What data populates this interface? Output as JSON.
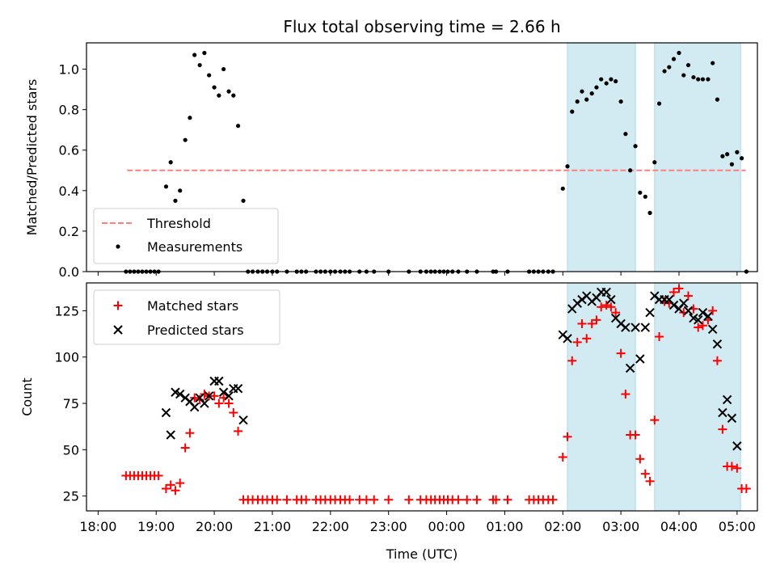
{
  "chart_data": [
    {
      "type": "scatter",
      "title": "Flux total observing time = 2.66 h",
      "xlabel": "",
      "ylabel": "Matched/Predicted stars",
      "ylim": [
        0,
        1.13
      ],
      "yticks": [
        0.0,
        0.2,
        0.4,
        0.6,
        0.8,
        1.0
      ],
      "ytick_labels": [
        "0.0",
        "0.2",
        "0.4",
        "0.6",
        "0.8",
        "1.0"
      ],
      "x_unit": "hours since 18:00 UTC",
      "xlim": [
        -0.2,
        11.35
      ],
      "highlight_spans": [
        [
          8.08,
          9.25
        ],
        [
          9.58,
          11.06
        ]
      ],
      "highlight_color": "#add8e6",
      "threshold": {
        "name": "Threshold",
        "value": 0.5,
        "x_range": [
          0.5,
          11.15
        ],
        "color": "#ff7f7f",
        "style": "dashed"
      },
      "series": [
        {
          "name": "Measurements",
          "marker": "dot",
          "color": "#000000",
          "x": [
            0.48,
            0.55,
            0.62,
            0.69,
            0.76,
            0.83,
            0.9,
            0.97,
            1.04,
            1.17,
            1.25,
            1.33,
            1.41,
            1.5,
            1.58,
            1.66,
            1.75,
            1.83,
            1.91,
            2.0,
            2.08,
            2.16,
            2.25,
            2.33,
            2.41,
            2.5,
            2.58,
            2.66,
            2.75,
            2.83,
            2.91,
            3.0,
            3.08,
            3.25,
            3.42,
            3.5,
            3.58,
            3.75,
            3.83,
            3.91,
            4.0,
            4.08,
            4.17,
            4.25,
            4.33,
            4.5,
            4.62,
            4.75,
            5.0,
            5.35,
            5.55,
            5.65,
            5.73,
            5.8,
            5.88,
            5.95,
            6.02,
            6.1,
            6.2,
            6.35,
            6.52,
            6.8,
            6.85,
            7.05,
            7.42,
            7.5,
            7.58,
            7.66,
            7.75,
            7.83,
            8.0,
            8.08,
            8.16,
            8.25,
            8.33,
            8.41,
            8.5,
            8.58,
            8.66,
            8.75,
            8.83,
            8.91,
            9.0,
            9.08,
            9.16,
            9.25,
            9.33,
            9.42,
            9.5,
            9.58,
            9.66,
            9.75,
            9.83,
            9.91,
            10.0,
            10.08,
            10.16,
            10.25,
            10.33,
            10.41,
            10.5,
            10.58,
            10.66,
            10.75,
            10.83,
            10.91,
            11.0,
            11.08,
            11.16
          ],
          "y": [
            0,
            0,
            0,
            0,
            0,
            0,
            0,
            0,
            0,
            0.42,
            0.54,
            0.35,
            0.4,
            0.65,
            0.76,
            1.07,
            1.02,
            1.08,
            0.97,
            0.91,
            0.87,
            1.0,
            0.89,
            0.87,
            0.72,
            0.35,
            0,
            0,
            0,
            0,
            0,
            0,
            0,
            0,
            0,
            0,
            0,
            0,
            0,
            0,
            0,
            0,
            0,
            0,
            0,
            0,
            0,
            0,
            0,
            0,
            0,
            0,
            0,
            0,
            0,
            0,
            0,
            0,
            0,
            0,
            0,
            0,
            0,
            0,
            0,
            0,
            0,
            0,
            0,
            0,
            0.41,
            0.52,
            0.79,
            0.84,
            0.89,
            0.85,
            0.88,
            0.91,
            0.95,
            0.93,
            0.95,
            0.94,
            0.84,
            0.68,
            0.5,
            0.62,
            0.39,
            0.37,
            0.29,
            0.54,
            0.83,
            0.99,
            1.01,
            1.05,
            1.08,
            0.97,
            1.02,
            0.96,
            0.95,
            0.95,
            0.95,
            1.03,
            0.85,
            0.57,
            0.58,
            0.53,
            0.59,
            0.56,
            0
          ]
        }
      ],
      "legend": {
        "position": "lower-left",
        "entries": [
          "Threshold",
          "Measurements"
        ]
      }
    },
    {
      "type": "scatter",
      "title": "",
      "xlabel": "Time (UTC)",
      "ylabel": "Count",
      "ylim": [
        17,
        140
      ],
      "yticks": [
        25,
        50,
        75,
        100,
        125
      ],
      "ytick_labels": [
        "25",
        "50",
        "75",
        "100",
        "125"
      ],
      "x_unit": "hours since 18:00 UTC",
      "xlim": [
        -0.2,
        11.35
      ],
      "xticks": [
        0,
        1,
        2,
        3,
        4,
        5,
        6,
        7,
        8,
        9,
        10,
        11
      ],
      "xtick_labels": [
        "18:00",
        "19:00",
        "20:00",
        "21:00",
        "22:00",
        "23:00",
        "00:00",
        "01:00",
        "02:00",
        "03:00",
        "04:00",
        "05:00"
      ],
      "highlight_spans": [
        [
          8.08,
          9.25
        ],
        [
          9.58,
          11.06
        ]
      ],
      "highlight_color": "#add8e6",
      "series": [
        {
          "name": "Matched stars",
          "marker": "plus",
          "color": "#ff0000",
          "x": [
            0.48,
            0.55,
            0.62,
            0.69,
            0.76,
            0.83,
            0.9,
            0.97,
            1.04,
            1.17,
            1.25,
            1.33,
            1.41,
            1.5,
            1.58,
            1.66,
            1.75,
            1.83,
            1.91,
            2.0,
            2.08,
            2.16,
            2.25,
            2.33,
            2.41,
            2.5,
            2.58,
            2.66,
            2.75,
            2.83,
            2.91,
            3.0,
            3.08,
            3.25,
            3.42,
            3.5,
            3.58,
            3.75,
            3.83,
            3.91,
            4.0,
            4.08,
            4.17,
            4.25,
            4.33,
            4.5,
            4.62,
            4.75,
            5.0,
            5.35,
            5.55,
            5.65,
            5.73,
            5.8,
            5.88,
            5.95,
            6.02,
            6.1,
            6.2,
            6.35,
            6.52,
            6.8,
            6.85,
            7.05,
            7.42,
            7.5,
            7.58,
            7.66,
            7.75,
            7.83,
            8.0,
            8.08,
            8.16,
            8.25,
            8.33,
            8.41,
            8.5,
            8.58,
            8.66,
            8.75,
            8.83,
            8.91,
            9.0,
            9.08,
            9.16,
            9.25,
            9.33,
            9.42,
            9.5,
            9.58,
            9.66,
            9.75,
            9.83,
            9.91,
            10.0,
            10.08,
            10.16,
            10.25,
            10.33,
            10.41,
            10.5,
            10.58,
            10.66,
            10.75,
            10.83,
            10.91,
            11.0,
            11.08,
            11.16
          ],
          "y": [
            36,
            36,
            36,
            36,
            36,
            36,
            36,
            36,
            36,
            29,
            31,
            28,
            32,
            51,
            59,
            78,
            77,
            80,
            79,
            79,
            75,
            78,
            75,
            70,
            60,
            23,
            23,
            23,
            23,
            23,
            23,
            23,
            23,
            23,
            23,
            23,
            23,
            23,
            23,
            23,
            23,
            23,
            23,
            23,
            23,
            23,
            23,
            23,
            23,
            23,
            23,
            23,
            23,
            23,
            23,
            23,
            23,
            23,
            23,
            23,
            23,
            23,
            23,
            23,
            23,
            23,
            23,
            23,
            23,
            23,
            46,
            57,
            98,
            108,
            118,
            110,
            118,
            120,
            127,
            128,
            127,
            124,
            102,
            80,
            58,
            58,
            45,
            37,
            33,
            66,
            111,
            130,
            129,
            135,
            137,
            124,
            133,
            126,
            116,
            117,
            120,
            125,
            98,
            61,
            41,
            41,
            40,
            29,
            29
          ]
        },
        {
          "name": "Predicted stars",
          "marker": "x",
          "color": "#000000",
          "x": [
            1.17,
            1.25,
            1.33,
            1.41,
            1.5,
            1.58,
            1.66,
            1.75,
            1.83,
            1.91,
            2.0,
            2.08,
            2.16,
            2.25,
            2.33,
            2.41,
            2.5,
            8.0,
            8.08,
            8.16,
            8.25,
            8.33,
            8.41,
            8.5,
            8.58,
            8.66,
            8.75,
            8.83,
            8.91,
            9.0,
            9.08,
            9.16,
            9.25,
            9.33,
            9.42,
            9.5,
            9.58,
            9.66,
            9.75,
            9.83,
            9.91,
            10.0,
            10.08,
            10.16,
            10.25,
            10.33,
            10.41,
            10.5,
            10.58,
            10.66,
            10.75,
            10.83,
            10.91,
            11.0
          ],
          "y": [
            70,
            58,
            81,
            80,
            78,
            76,
            73,
            78,
            75,
            79,
            87,
            87,
            81,
            79,
            83,
            83,
            66,
            112,
            110,
            126,
            129,
            131,
            133,
            130,
            132,
            135,
            135,
            131,
            121,
            118,
            116,
            94,
            116,
            99,
            116,
            124,
            133,
            131,
            131,
            131,
            128,
            126,
            129,
            125,
            121,
            120,
            124,
            122,
            115,
            107,
            70,
            77,
            67,
            52
          ]
        }
      ],
      "legend": {
        "position": "upper-left",
        "entries": [
          "Matched stars",
          "Predicted stars"
        ]
      }
    }
  ]
}
